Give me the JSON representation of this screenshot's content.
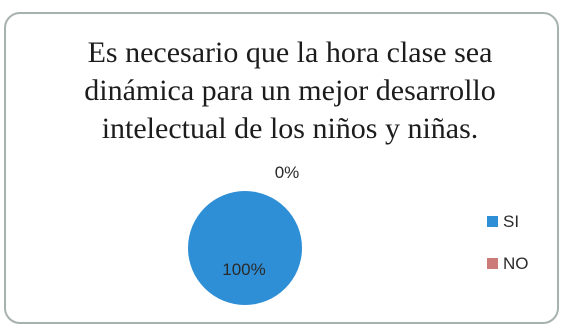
{
  "chart_data": {
    "type": "pie",
    "title_lines": [
      "Es necesario que la hora clase sea",
      "dinámica para un mejor desarrollo",
      "intelectual de los niños y niñas."
    ],
    "categories": [
      "SI",
      "NO"
    ],
    "values": [
      100,
      0
    ],
    "data_labels": [
      "100%",
      "0%"
    ],
    "colors": [
      "#2e8fd6",
      "#cd7b78"
    ],
    "legend_position": "right"
  }
}
